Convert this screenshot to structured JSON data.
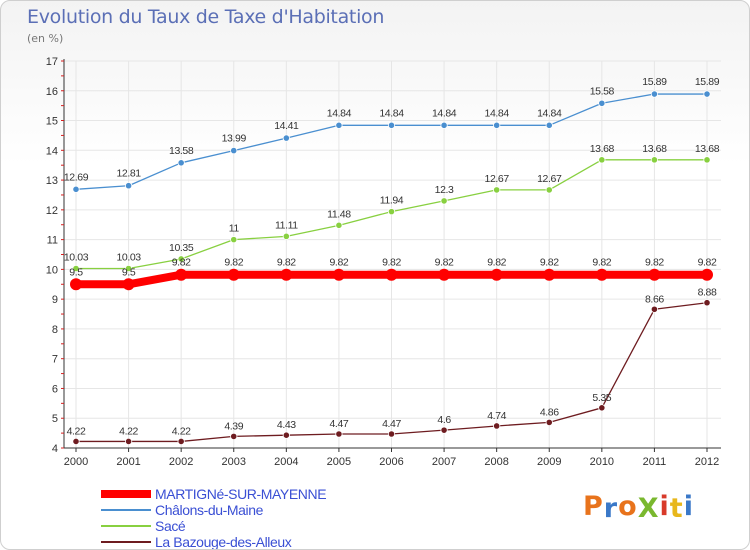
{
  "chart_data": {
    "type": "line",
    "title": "Evolution du Taux de Taxe d'Habitation",
    "subtitle": "(en %)",
    "x": [
      "2000",
      "2001",
      "2002",
      "2003",
      "2004",
      "2005",
      "2006",
      "2007",
      "2008",
      "2009",
      "2010",
      "2011",
      "2012"
    ],
    "ylim": [
      4,
      17
    ],
    "yticks": [
      4,
      5,
      6,
      7,
      8,
      9,
      10,
      11,
      12,
      13,
      14,
      15,
      16,
      17
    ],
    "grid": true,
    "legend": "bottom-left",
    "series": [
      {
        "name": "MARTIGNé-SUR-MAYENNE",
        "color": "#ff0000",
        "values": [
          9.5,
          9.5,
          9.82,
          9.82,
          9.82,
          9.82,
          9.82,
          9.82,
          9.82,
          9.82,
          9.82,
          9.82,
          9.82
        ],
        "labels": [
          "9.5",
          "9.5",
          "9.82",
          "9.82",
          "9.82",
          "9.82",
          "9.82",
          "9.82",
          "9.82",
          "9.82",
          "9.82",
          "9.82",
          "9.82"
        ]
      },
      {
        "name": "Châlons-du-Maine",
        "color": "#4a8fd0",
        "values": [
          12.69,
          12.81,
          13.58,
          13.99,
          14.41,
          14.84,
          14.84,
          14.84,
          14.84,
          14.84,
          15.58,
          15.89,
          15.89
        ],
        "labels": [
          "12.69",
          "12.81",
          "13.58",
          "13.99",
          "14.41",
          "14.84",
          "14.84",
          "14.84",
          "14.84",
          "14.84",
          "15.58",
          "15.89",
          "15.89"
        ]
      },
      {
        "name": "Sacé",
        "color": "#88d040",
        "values": [
          10.03,
          10.03,
          10.35,
          11,
          11.11,
          11.48,
          11.94,
          12.3,
          12.67,
          12.67,
          13.68,
          13.68,
          13.68
        ],
        "labels": [
          "10.03",
          "10.03",
          "10.35",
          "11",
          "11.11",
          "11.48",
          "11.94",
          "12.3",
          "12.67",
          "12.67",
          "13.68",
          "13.68",
          "13.68"
        ]
      },
      {
        "name": "La Bazouge-des-Alleux",
        "color": "#6e1c20",
        "values": [
          4.22,
          4.22,
          4.22,
          4.39,
          4.43,
          4.47,
          4.47,
          4.6,
          4.74,
          4.86,
          5.35,
          8.66,
          8.88
        ],
        "labels": [
          "4.22",
          "4.22",
          "4.22",
          "4.39",
          "4.43",
          "4.47",
          "4.47",
          "4.6",
          "4.74",
          "4.86",
          "5.35",
          "8.66",
          "8.88"
        ]
      }
    ]
  },
  "brand": {
    "logo_text": "ProXiti",
    "colors": [
      "#e8731c",
      "#3a78c8",
      "#e8731c",
      "#7ab82f",
      "#d83a2a",
      "#e8b71c",
      "#3a78c8"
    ]
  }
}
